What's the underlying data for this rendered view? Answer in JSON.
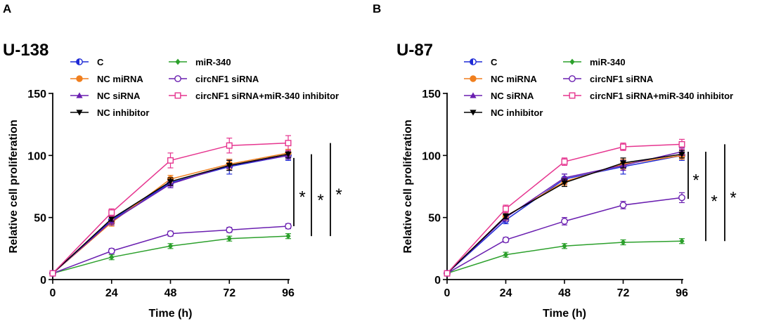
{
  "panels": {
    "a": {
      "letter": "A"
    },
    "b": {
      "letter": "B"
    }
  },
  "chart_data": [
    {
      "type": "line",
      "panel": "A",
      "title": "U-138",
      "xlabel": "Time (h)",
      "ylabel": "Relative cell proliferation",
      "x": [
        0,
        24,
        48,
        72,
        96
      ],
      "xlim": [
        0,
        96
      ],
      "ylim": [
        0,
        150
      ],
      "xticks": [
        "0",
        "24",
        "48",
        "72",
        "96"
      ],
      "yticks": [
        "0",
        "50",
        "100",
        "150"
      ],
      "legend_position": "top-left",
      "series": [
        {
          "name": "C",
          "color": "#1f2bd6",
          "marker": "half-circle",
          "values": [
            5,
            48,
            78,
            91,
            100
          ],
          "err": [
            1,
            3,
            4,
            6,
            4
          ]
        },
        {
          "name": "NC miRNA",
          "color": "#f07f1e",
          "marker": "circle",
          "values": [
            5,
            46,
            81,
            93,
            102
          ],
          "err": [
            1,
            3,
            3,
            4,
            3
          ]
        },
        {
          "name": "NC siRNA",
          "color": "#6a1fb0",
          "marker": "triangle-up",
          "values": [
            5,
            47,
            77,
            92,
            100
          ],
          "err": [
            1,
            3,
            3,
            4,
            3
          ]
        },
        {
          "name": "NC inhibitor",
          "color": "#000000",
          "marker": "triangle-down",
          "values": [
            5,
            49,
            79,
            92,
            101
          ],
          "err": [
            1,
            2,
            3,
            4,
            3
          ]
        },
        {
          "name": "miR-340",
          "color": "#2ca02c",
          "marker": "diamond",
          "values": [
            5,
            18,
            27,
            33,
            35
          ],
          "err": [
            1,
            2,
            2,
            2,
            2
          ]
        },
        {
          "name": "circNF1 siRNA",
          "color": "#6a1fb0",
          "marker": "circle-open",
          "values": [
            5,
            23,
            37,
            40,
            43
          ],
          "err": [
            1,
            2,
            2,
            2,
            2
          ]
        },
        {
          "name": "circNF1 siRNA+miR-340 inhibitor",
          "color": "#e6358f",
          "marker": "square-open",
          "values": [
            5,
            54,
            96,
            108,
            110
          ],
          "err": [
            1,
            3,
            6,
            6,
            6
          ]
        }
      ],
      "annotations": {
        "stars": [
          "*",
          "*",
          "*"
        ]
      }
    },
    {
      "type": "line",
      "panel": "B",
      "title": "U-87",
      "xlabel": "Time (h)",
      "ylabel": "Relative cell proliferation",
      "x": [
        0,
        24,
        48,
        72,
        96
      ],
      "xlim": [
        0,
        96
      ],
      "ylim": [
        0,
        150
      ],
      "xticks": [
        "0",
        "24",
        "48",
        "72",
        "96"
      ],
      "yticks": [
        "0",
        "50",
        "100",
        "150"
      ],
      "legend_position": "top-left",
      "series": [
        {
          "name": "C",
          "color": "#1f2bd6",
          "marker": "half-circle",
          "values": [
            5,
            48,
            81,
            91,
            100
          ],
          "err": [
            1,
            3,
            4,
            6,
            4
          ]
        },
        {
          "name": "NC miRNA",
          "color": "#f07f1e",
          "marker": "circle",
          "values": [
            5,
            51,
            79,
            93,
            100
          ],
          "err": [
            1,
            3,
            3,
            4,
            3
          ]
        },
        {
          "name": "NC siRNA",
          "color": "#6a1fb0",
          "marker": "triangle-up",
          "values": [
            5,
            50,
            82,
            92,
            103
          ],
          "err": [
            1,
            3,
            3,
            4,
            3
          ]
        },
        {
          "name": "NC inhibitor",
          "color": "#000000",
          "marker": "triangle-down",
          "values": [
            5,
            51,
            78,
            94,
            101
          ],
          "err": [
            1,
            2,
            3,
            4,
            3
          ]
        },
        {
          "name": "miR-340",
          "color": "#2ca02c",
          "marker": "diamond",
          "values": [
            5,
            20,
            27,
            30,
            31
          ],
          "err": [
            1,
            2,
            2,
            2,
            2
          ]
        },
        {
          "name": "circNF1 siRNA",
          "color": "#6a1fb0",
          "marker": "circle-open",
          "values": [
            5,
            32,
            47,
            60,
            66
          ],
          "err": [
            1,
            2,
            3,
            3,
            4
          ]
        },
        {
          "name": "circNF1 siRNA+miR-340 inhibitor",
          "color": "#e6358f",
          "marker": "square-open",
          "values": [
            5,
            57,
            95,
            107,
            109
          ],
          "err": [
            1,
            3,
            3,
            3,
            4
          ]
        }
      ],
      "annotations": {
        "stars": [
          "*",
          "*",
          "*"
        ]
      }
    }
  ]
}
